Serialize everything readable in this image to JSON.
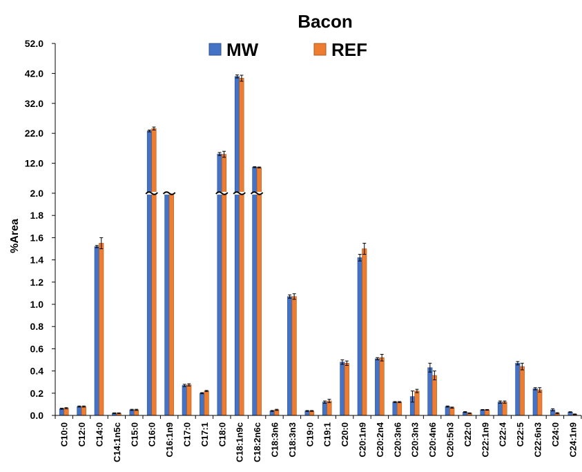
{
  "chart_data": {
    "type": "bar",
    "title": "Bacon",
    "xlabel": "",
    "ylabel": "%Area",
    "grid": false,
    "legend_position": "top-center",
    "broken_axis": true,
    "ylim_lower": [
      0,
      2.0
    ],
    "ylim_upper": [
      2.0,
      52.0
    ],
    "yticks_lower": [
      "0.0",
      "0.2",
      "0.4",
      "0.6",
      "0.8",
      "1.0",
      "1.2",
      "1.4",
      "1.6",
      "1.8",
      "2.0"
    ],
    "yticks_upper": [
      "12.0",
      "22.0",
      "32.0",
      "42.0",
      "52.0"
    ],
    "categories": [
      "C10:0",
      "C12:0",
      "C14:0",
      "C14:1n5c",
      "C15:0",
      "C16:0",
      "C16:1n9",
      "C17:0",
      "C17:1",
      "C18:0",
      "C18:1n9c",
      "C18:2n6c",
      "C18:3n6",
      "C18:3n3",
      "C19:0",
      "C19:1",
      "C20:0",
      "C20:1n9",
      "C20:2n4",
      "C20:3n6",
      "C20:3n3",
      "C20:4n6",
      "C20:5n3",
      "C22:0",
      "C22:1n9",
      "C22:4",
      "C22:5",
      "C22:6n3",
      "C24:0",
      "C24:1n9"
    ],
    "series": [
      {
        "name": "MW",
        "color": "#4472C4",
        "values": [
          0.06,
          0.08,
          1.52,
          0.02,
          0.05,
          22.8,
          2.2,
          0.27,
          0.2,
          15.1,
          41.0,
          10.7,
          0.04,
          1.07,
          0.04,
          0.12,
          0.48,
          1.42,
          0.51,
          0.12,
          0.17,
          0.43,
          0.08,
          0.03,
          0.05,
          0.12,
          0.47,
          0.24,
          0.05,
          0.03
        ],
        "errors": [
          0.005,
          0.005,
          0.01,
          0.003,
          0.005,
          0.3,
          0.05,
          0.01,
          0.005,
          0.5,
          0.5,
          0.15,
          0.005,
          0.015,
          0.004,
          0.01,
          0.02,
          0.03,
          0.01,
          0.005,
          0.05,
          0.04,
          0.005,
          0.004,
          0.003,
          0.01,
          0.015,
          0.01,
          0.01,
          0.003
        ]
      },
      {
        "name": "REF",
        "color": "#ED7D31",
        "values": [
          0.065,
          0.08,
          1.55,
          0.02,
          0.05,
          23.6,
          2.2,
          0.275,
          0.22,
          15.0,
          40.4,
          10.6,
          0.05,
          1.07,
          0.04,
          0.13,
          0.47,
          1.5,
          0.52,
          0.12,
          0.22,
          0.36,
          0.07,
          0.02,
          0.05,
          0.12,
          0.44,
          0.23,
          0.02,
          0.01
        ],
        "errors": [
          0.005,
          0.005,
          0.05,
          0.003,
          0.005,
          0.5,
          0.05,
          0.01,
          0.005,
          1.0,
          1.0,
          0.15,
          0.005,
          0.025,
          0.004,
          0.015,
          0.02,
          0.05,
          0.03,
          0.005,
          0.015,
          0.04,
          0.005,
          0.003,
          0.003,
          0.01,
          0.03,
          0.02,
          0.005,
          0.003
        ]
      }
    ]
  }
}
